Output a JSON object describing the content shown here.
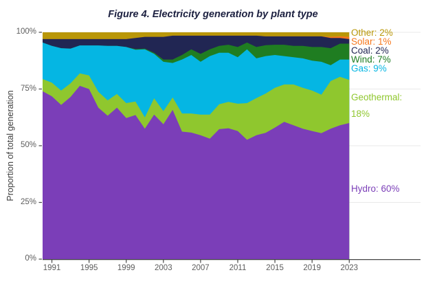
{
  "chart_data": {
    "type": "area",
    "stacked": true,
    "title": "Figure 4. Electricity generation by plant type",
    "xlabel": "",
    "ylabel": "Proportion of total generation",
    "ylim": [
      0,
      100
    ],
    "grid": true,
    "legend_position": "right",
    "x": [
      1990,
      1991,
      1992,
      1993,
      1994,
      1995,
      1996,
      1997,
      1998,
      1999,
      2000,
      2001,
      2002,
      2003,
      2004,
      2005,
      2006,
      2007,
      2008,
      2009,
      2010,
      2011,
      2012,
      2013,
      2014,
      2015,
      2016,
      2017,
      2018,
      2019,
      2020,
      2021,
      2022,
      2023
    ],
    "x_tick_labels": [
      "1991",
      "1995",
      "1999",
      "2003",
      "2007",
      "2011",
      "2015",
      "2019",
      "2023"
    ],
    "x_tick_values": [
      1991,
      1995,
      1999,
      2003,
      2007,
      2011,
      2015,
      2019,
      2023
    ],
    "y_tick_labels": [
      "0%",
      "25%",
      "50%",
      "75%",
      "100%"
    ],
    "y_tick_values": [
      0,
      25,
      50,
      75,
      100
    ],
    "series": [
      {
        "name": "Hydro",
        "legend_label": "Hydro: 60%",
        "legend_label_lines": [
          "Hydro: 60%"
        ],
        "color": "#7B3EB8",
        "values": [
          74.0,
          71.8,
          68.0,
          71.5,
          76.4,
          75.0,
          66.8,
          63.2,
          66.8,
          62.2,
          63.5,
          57.5,
          63.7,
          59.5,
          65.8,
          56.2,
          55.8,
          54.6,
          53.1,
          57.3,
          57.7,
          56.5,
          52.6,
          54.6,
          55.7,
          58.0,
          60.5,
          59.0,
          57.5,
          56.5,
          55.5,
          57.5,
          59.0,
          60.0
        ]
      },
      {
        "name": "Geothermal",
        "legend_label": "Geothermal: 18%",
        "legend_label_lines": [
          "Geothermal:",
          "18%"
        ],
        "color": "#8FC72E",
        "values": [
          5.4,
          6.0,
          6.3,
          6.0,
          5.5,
          6.0,
          7.0,
          6.8,
          6.0,
          6.6,
          6.0,
          5.0,
          7.2,
          5.7,
          5.5,
          8.0,
          8.4,
          9.1,
          10.6,
          11.0,
          11.6,
          12.0,
          16.2,
          16.4,
          17.3,
          17.5,
          16.5,
          18.0,
          18.0,
          17.8,
          17.0,
          21.0,
          21.4,
          19.0
        ]
      },
      {
        "name": "Gas",
        "legend_label": "Gas: 9%",
        "legend_label_lines": [
          "Gas: 9%"
        ],
        "color": "#05B6E3",
        "values": [
          16.1,
          16.2,
          18.7,
          15.3,
          12.3,
          13.2,
          20.4,
          24.0,
          21.2,
          24.7,
          22.8,
          30.0,
          19.6,
          21.8,
          15.2,
          23.8,
          25.8,
          23.3,
          25.8,
          22.7,
          21.7,
          20.5,
          23.7,
          17.5,
          16.5,
          14.5,
          12.5,
          12.0,
          13.0,
          13.2,
          14.5,
          7.0,
          7.6,
          9.0
        ]
      },
      {
        "name": "Wind",
        "legend_label": "Wind: 7%",
        "legend_label_lines": [
          "Wind: 7%"
        ],
        "color": "#1F7D21",
        "values": [
          0,
          0,
          0,
          0,
          0,
          0,
          0,
          0,
          0,
          0,
          0.3,
          0.3,
          0.5,
          1.0,
          1.5,
          2.0,
          2.5,
          3.5,
          3.0,
          3.0,
          3.5,
          4.5,
          3.0,
          5.0,
          4.8,
          4.5,
          5.0,
          5.0,
          5.5,
          6.0,
          6.5,
          7.5,
          7.0,
          7.0
        ]
      },
      {
        "name": "Coal",
        "legend_label": "Coal: 2%",
        "legend_label_lines": [
          "Coal: 2%"
        ],
        "color": "#212653",
        "values": [
          1.5,
          3.0,
          4.0,
          4.2,
          2.8,
          2.8,
          2.8,
          3.0,
          3.0,
          3.5,
          4.9,
          5.2,
          7.0,
          10.0,
          10.5,
          8.5,
          6.0,
          8.0,
          6.0,
          4.5,
          4.0,
          5.0,
          3.0,
          5.0,
          3.9,
          3.7,
          3.7,
          4.2,
          4.2,
          4.7,
          4.7,
          4.5,
          2.5,
          2.0
        ]
      },
      {
        "name": "Solar",
        "legend_label": "Solar: 1%",
        "legend_label_lines": [
          "Solar: 1%"
        ],
        "color": "#F6771D",
        "values": [
          0,
          0,
          0,
          0,
          0,
          0,
          0,
          0,
          0,
          0,
          0,
          0,
          0,
          0,
          0,
          0,
          0,
          0,
          0,
          0,
          0,
          0,
          0,
          0,
          0,
          0,
          0,
          0,
          0,
          0,
          0,
          0.5,
          0.7,
          1.0
        ]
      },
      {
        "name": "Other",
        "legend_label": "Other: 2%",
        "legend_label_lines": [
          "Other: 2%"
        ],
        "color": "#B99708",
        "values": [
          3.0,
          3.0,
          3.0,
          3.0,
          3.0,
          3.0,
          3.0,
          3.0,
          3.0,
          3.0,
          2.5,
          2.0,
          2.0,
          2.0,
          1.5,
          1.5,
          1.5,
          1.5,
          1.5,
          1.5,
          1.5,
          1.5,
          1.5,
          1.5,
          1.8,
          1.8,
          1.8,
          1.8,
          1.8,
          1.8,
          1.8,
          2.0,
          1.8,
          2.0
        ]
      }
    ]
  }
}
